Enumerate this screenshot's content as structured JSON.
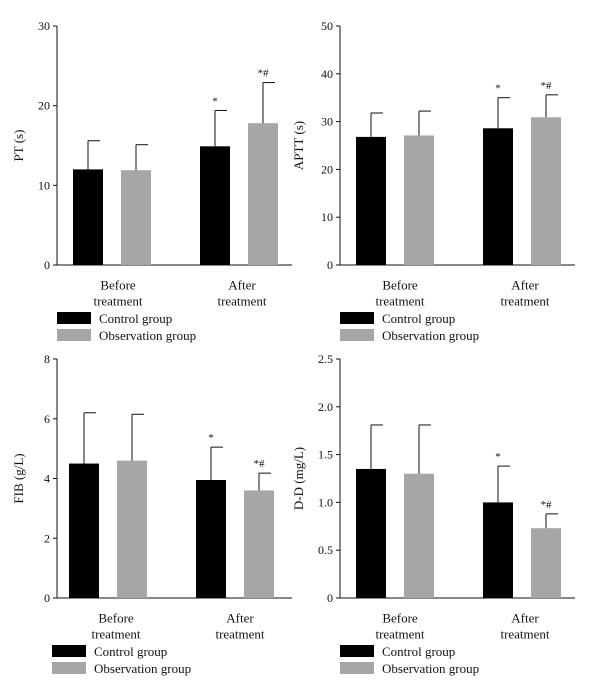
{
  "colors": {
    "control": "#000000",
    "observation": "#a6a6a6"
  },
  "chart_data": [
    {
      "type": "bar",
      "ylabel": "PT (s)",
      "ylim": [
        0,
        30
      ],
      "yticks": [
        0,
        10,
        20,
        30
      ],
      "categories": [
        [
          "Before",
          "treatment"
        ],
        [
          "After",
          "treatment"
        ]
      ],
      "series": [
        {
          "name": "Control group",
          "values": [
            12.0,
            14.9
          ],
          "errors": [
            3.6,
            4.5
          ],
          "marks": [
            "",
            "*"
          ]
        },
        {
          "name": "Observation group",
          "values": [
            11.9,
            17.8
          ],
          "errors": [
            3.2,
            5.1
          ],
          "marks": [
            "",
            "*#"
          ]
        }
      ],
      "legend": "bottom"
    },
    {
      "type": "bar",
      "ylabel": "APTT (s)",
      "ylim": [
        0,
        50
      ],
      "yticks": [
        0,
        10,
        20,
        30,
        40,
        50
      ],
      "categories": [
        [
          "Before",
          "treatment"
        ],
        [
          "After",
          "treatment"
        ]
      ],
      "series": [
        {
          "name": "Control group",
          "values": [
            26.8,
            28.6
          ],
          "errors": [
            5.0,
            6.4
          ],
          "marks": [
            "",
            "*"
          ]
        },
        {
          "name": "Observation group",
          "values": [
            27.1,
            30.9
          ],
          "errors": [
            5.1,
            4.7
          ],
          "marks": [
            "",
            "*#"
          ]
        }
      ],
      "legend": "bottom"
    },
    {
      "type": "bar",
      "ylabel": "FIB (g/L)",
      "ylim": [
        0,
        8
      ],
      "yticks": [
        0,
        2,
        4,
        6,
        8
      ],
      "categories": [
        [
          "Before",
          "treatment"
        ],
        [
          "After",
          "treatment"
        ]
      ],
      "series": [
        {
          "name": "Control group",
          "values": [
            4.5,
            3.95
          ],
          "errors": [
            1.7,
            1.1
          ],
          "marks": [
            "",
            "*"
          ]
        },
        {
          "name": "Observation group",
          "values": [
            4.6,
            3.6
          ],
          "errors": [
            1.55,
            0.58
          ],
          "marks": [
            "",
            "*#"
          ]
        }
      ],
      "legend": "bottom"
    },
    {
      "type": "bar",
      "ylabel": "D-D (mg/L)",
      "ylim": [
        0,
        2.5
      ],
      "yticks": [
        "0",
        "0.5",
        "1.0",
        "1.5",
        "2.0",
        "2.5"
      ],
      "categories": [
        [
          "Before",
          "treatment"
        ],
        [
          "After",
          "treatment"
        ]
      ],
      "series": [
        {
          "name": "Control group",
          "values": [
            1.35,
            1.0
          ],
          "errors": [
            0.46,
            0.38
          ],
          "marks": [
            "",
            "*"
          ]
        },
        {
          "name": "Observation group",
          "values": [
            1.3,
            0.73
          ],
          "errors": [
            0.51,
            0.15
          ],
          "marks": [
            "",
            "*#"
          ]
        }
      ],
      "legend": "bottom"
    }
  ]
}
